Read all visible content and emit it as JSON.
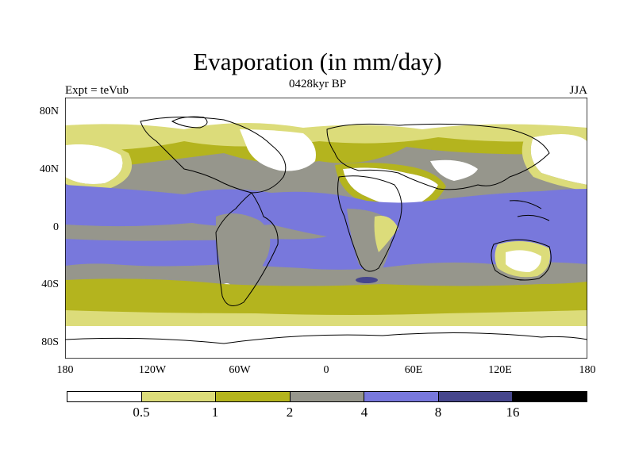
{
  "title": "Evaporation (in mm/day)",
  "subtitle": "0428kyr BP",
  "left_label": "Expt = teVub",
  "right_label": "JJA",
  "lat_ticks": [
    "80N",
    "40N",
    "0",
    "40S",
    "80S"
  ],
  "lon_ticks": [
    "180",
    "120W",
    "60W",
    "0",
    "60E",
    "120E",
    "180"
  ],
  "colorbar": {
    "colors": [
      "#ffffff",
      "#dcdc7a",
      "#b4b41e",
      "#96968c",
      "#7878dc",
      "#46468c",
      "#000000"
    ],
    "labels": [
      "0.5",
      "1",
      "2",
      "4",
      "8",
      "16"
    ]
  },
  "map_colors": {
    "white": "#ffffff",
    "light_olive": "#dcdc7a",
    "olive": "#b4b41e",
    "gray": "#96968c",
    "blue": "#7878dc",
    "dark_blue": "#46468c",
    "coast": "#000000"
  }
}
